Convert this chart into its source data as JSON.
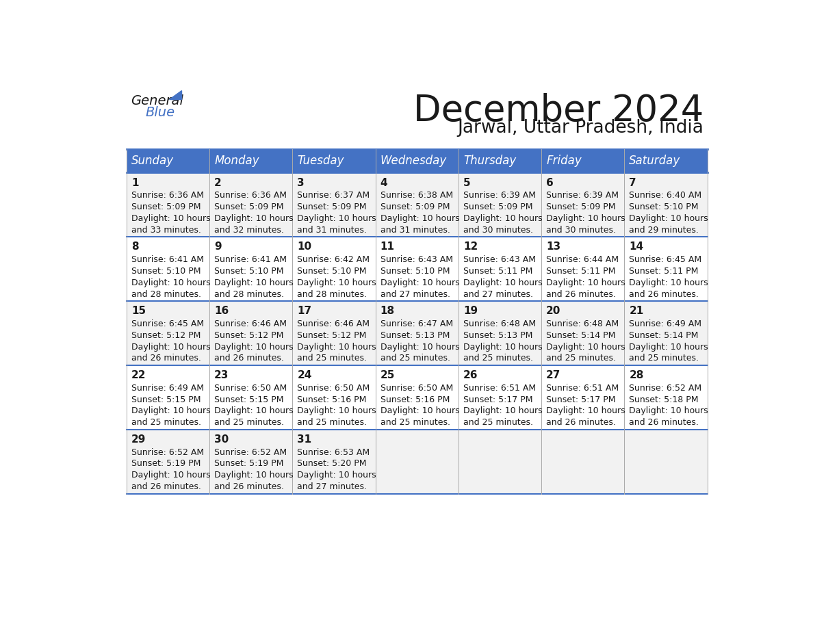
{
  "title": "December 2024",
  "subtitle": "Jarwal, Uttar Pradesh, India",
  "header_color": "#4472C4",
  "header_text_color": "#FFFFFF",
  "row_bg_even": "#F2F2F2",
  "row_bg_odd": "#FFFFFF",
  "border_color": "#4472C4",
  "thin_line_color": "#AAAAAA",
  "text_color": "#1a1a1a",
  "day_names": [
    "Sunday",
    "Monday",
    "Tuesday",
    "Wednesday",
    "Thursday",
    "Friday",
    "Saturday"
  ],
  "weeks": [
    [
      {
        "day": 1,
        "sunrise": "6:36 AM",
        "sunset": "5:09 PM",
        "daylight_hours": 10,
        "daylight_minutes": 33
      },
      {
        "day": 2,
        "sunrise": "6:36 AM",
        "sunset": "5:09 PM",
        "daylight_hours": 10,
        "daylight_minutes": 32
      },
      {
        "day": 3,
        "sunrise": "6:37 AM",
        "sunset": "5:09 PM",
        "daylight_hours": 10,
        "daylight_minutes": 31
      },
      {
        "day": 4,
        "sunrise": "6:38 AM",
        "sunset": "5:09 PM",
        "daylight_hours": 10,
        "daylight_minutes": 31
      },
      {
        "day": 5,
        "sunrise": "6:39 AM",
        "sunset": "5:09 PM",
        "daylight_hours": 10,
        "daylight_minutes": 30
      },
      {
        "day": 6,
        "sunrise": "6:39 AM",
        "sunset": "5:09 PM",
        "daylight_hours": 10,
        "daylight_minutes": 30
      },
      {
        "day": 7,
        "sunrise": "6:40 AM",
        "sunset": "5:10 PM",
        "daylight_hours": 10,
        "daylight_minutes": 29
      }
    ],
    [
      {
        "day": 8,
        "sunrise": "6:41 AM",
        "sunset": "5:10 PM",
        "daylight_hours": 10,
        "daylight_minutes": 28
      },
      {
        "day": 9,
        "sunrise": "6:41 AM",
        "sunset": "5:10 PM",
        "daylight_hours": 10,
        "daylight_minutes": 28
      },
      {
        "day": 10,
        "sunrise": "6:42 AM",
        "sunset": "5:10 PM",
        "daylight_hours": 10,
        "daylight_minutes": 28
      },
      {
        "day": 11,
        "sunrise": "6:43 AM",
        "sunset": "5:10 PM",
        "daylight_hours": 10,
        "daylight_minutes": 27
      },
      {
        "day": 12,
        "sunrise": "6:43 AM",
        "sunset": "5:11 PM",
        "daylight_hours": 10,
        "daylight_minutes": 27
      },
      {
        "day": 13,
        "sunrise": "6:44 AM",
        "sunset": "5:11 PM",
        "daylight_hours": 10,
        "daylight_minutes": 26
      },
      {
        "day": 14,
        "sunrise": "6:45 AM",
        "sunset": "5:11 PM",
        "daylight_hours": 10,
        "daylight_minutes": 26
      }
    ],
    [
      {
        "day": 15,
        "sunrise": "6:45 AM",
        "sunset": "5:12 PM",
        "daylight_hours": 10,
        "daylight_minutes": 26
      },
      {
        "day": 16,
        "sunrise": "6:46 AM",
        "sunset": "5:12 PM",
        "daylight_hours": 10,
        "daylight_minutes": 26
      },
      {
        "day": 17,
        "sunrise": "6:46 AM",
        "sunset": "5:12 PM",
        "daylight_hours": 10,
        "daylight_minutes": 25
      },
      {
        "day": 18,
        "sunrise": "6:47 AM",
        "sunset": "5:13 PM",
        "daylight_hours": 10,
        "daylight_minutes": 25
      },
      {
        "day": 19,
        "sunrise": "6:48 AM",
        "sunset": "5:13 PM",
        "daylight_hours": 10,
        "daylight_minutes": 25
      },
      {
        "day": 20,
        "sunrise": "6:48 AM",
        "sunset": "5:14 PM",
        "daylight_hours": 10,
        "daylight_minutes": 25
      },
      {
        "day": 21,
        "sunrise": "6:49 AM",
        "sunset": "5:14 PM",
        "daylight_hours": 10,
        "daylight_minutes": 25
      }
    ],
    [
      {
        "day": 22,
        "sunrise": "6:49 AM",
        "sunset": "5:15 PM",
        "daylight_hours": 10,
        "daylight_minutes": 25
      },
      {
        "day": 23,
        "sunrise": "6:50 AM",
        "sunset": "5:15 PM",
        "daylight_hours": 10,
        "daylight_minutes": 25
      },
      {
        "day": 24,
        "sunrise": "6:50 AM",
        "sunset": "5:16 PM",
        "daylight_hours": 10,
        "daylight_minutes": 25
      },
      {
        "day": 25,
        "sunrise": "6:50 AM",
        "sunset": "5:16 PM",
        "daylight_hours": 10,
        "daylight_minutes": 25
      },
      {
        "day": 26,
        "sunrise": "6:51 AM",
        "sunset": "5:17 PM",
        "daylight_hours": 10,
        "daylight_minutes": 25
      },
      {
        "day": 27,
        "sunrise": "6:51 AM",
        "sunset": "5:17 PM",
        "daylight_hours": 10,
        "daylight_minutes": 26
      },
      {
        "day": 28,
        "sunrise": "6:52 AM",
        "sunset": "5:18 PM",
        "daylight_hours": 10,
        "daylight_minutes": 26
      }
    ],
    [
      {
        "day": 29,
        "sunrise": "6:52 AM",
        "sunset": "5:19 PM",
        "daylight_hours": 10,
        "daylight_minutes": 26
      },
      {
        "day": 30,
        "sunrise": "6:52 AM",
        "sunset": "5:19 PM",
        "daylight_hours": 10,
        "daylight_minutes": 26
      },
      {
        "day": 31,
        "sunrise": "6:53 AM",
        "sunset": "5:20 PM",
        "daylight_hours": 10,
        "daylight_minutes": 27
      },
      null,
      null,
      null,
      null
    ]
  ],
  "title_fontsize": 38,
  "subtitle_fontsize": 19,
  "header_fontsize": 12,
  "day_num_fontsize": 11,
  "cell_text_fontsize": 9
}
